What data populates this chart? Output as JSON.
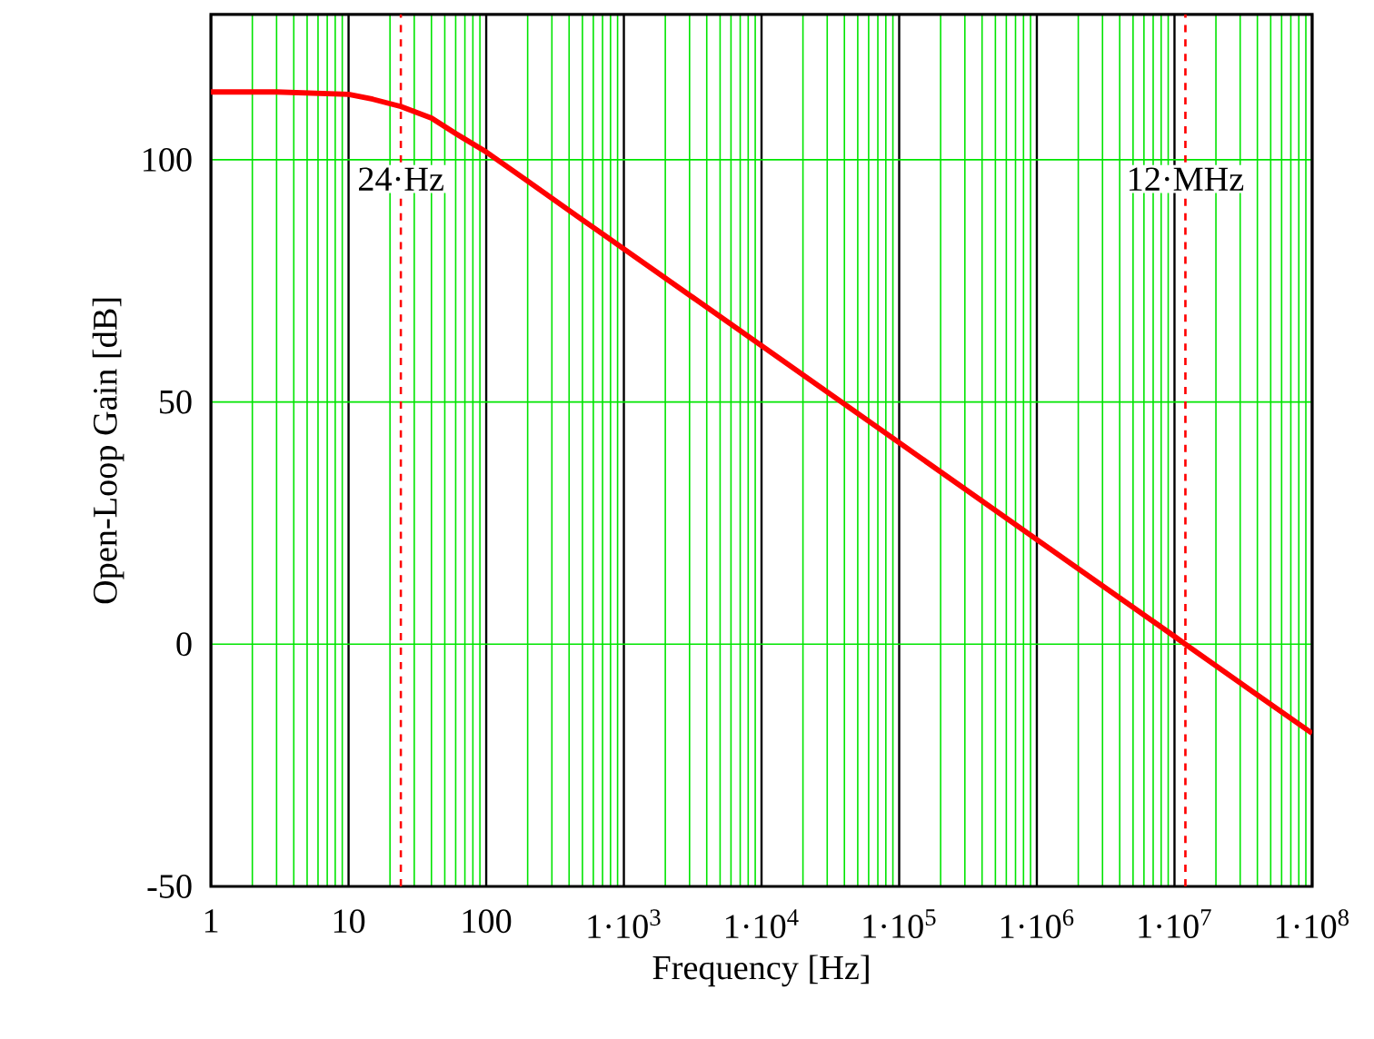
{
  "chart_data": {
    "type": "line",
    "xlabel": "Frequency [Hz]",
    "ylabel": "Open-Loop Gain [dB]",
    "x": [
      1,
      3,
      10,
      15,
      24,
      40,
      60,
      100,
      200,
      500,
      1000,
      10000,
      100000,
      1000000,
      10000000,
      12000000,
      30000000,
      100000000
    ],
    "series": [
      {
        "color": "#ff0000",
        "values": [
          114,
          114,
          113.5,
          112.5,
          111,
          108.6,
          105.4,
          101.6,
          95.6,
          87.6,
          81.6,
          61.6,
          41.6,
          21.6,
          1.6,
          0,
          -8,
          -18.4
        ]
      }
    ],
    "log": "x",
    "xlim": [
      1,
      100000000
    ],
    "ylim": [
      -50,
      130
    ],
    "xticks": [
      1,
      10,
      100,
      {
        "value": 1000,
        "label": "1·10$^{3}$"
      },
      {
        "value": 10000,
        "label": "1·10$^{4}$"
      },
      {
        "value": 100000,
        "label": "1·10$^{5}$"
      },
      {
        "value": 1000000,
        "label": "1·10$^{6}$"
      },
      {
        "value": 10000000,
        "label": "1·10$^{7}$"
      },
      {
        "value": 100000000,
        "label": "1·10$^{8}$"
      }
    ],
    "yticks": [
      -50,
      0,
      50,
      100
    ],
    "grid": true,
    "marker": "none",
    "line_style": "solid",
    "ref_lines": [
      {
        "axis": "x",
        "value": 24,
        "label": "24·Hz",
        "color": "#ff0000",
        "line_style": "dashed"
      },
      {
        "axis": "x",
        "value": 12000000,
        "label": "12·MHz",
        "color": "#ff0000",
        "line_style": "dashed"
      }
    ]
  }
}
